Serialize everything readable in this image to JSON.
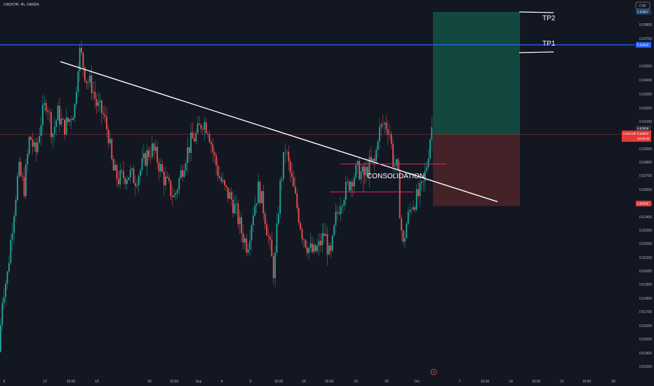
{
  "header": {
    "symbol_title": "CAD/CHF, 4h, OANDA",
    "currency_label": "CHF"
  },
  "chart_data": {
    "type": "candlestick",
    "ylim": [
      0.6125,
      0.6395
    ],
    "grid": false,
    "y_ticks": [
      "0.63800",
      "0.63700",
      "0.63500",
      "0.63400",
      "0.63300",
      "0.63200",
      "0.63100",
      "0.62900",
      "0.62800",
      "0.62700",
      "0.62600",
      "0.62500",
      "0.62400",
      "0.62300",
      "0.62200",
      "0.62100",
      "0.62000",
      "0.61900",
      "0.61800",
      "0.61700",
      "0.61600",
      "0.61500",
      "0.61400",
      "0.61300"
    ],
    "x_ticks": [
      "6",
      "12",
      "15:00",
      "19",
      "26",
      "15:00",
      "Sep",
      "4",
      "9",
      "15:00",
      "16",
      "15:00",
      "23",
      "26",
      "Oct",
      "7",
      "15:00",
      "14",
      "15:00",
      "21",
      "15:00",
      "28"
    ],
    "price_tags": {
      "tp2": "0.63907",
      "resistance": "0.63640",
      "current_1": "0.63008",
      "current_2": "0.63005",
      "symbol": "CADCHF",
      "symbol_price": "0.63002",
      "countdown": "03:50:09",
      "stop": "0.62490"
    },
    "levels": {
      "resistance": 0.6364,
      "entry": 0.63,
      "take_profit_2": 0.63907,
      "stop_loss": 0.6249,
      "consolidation_top": 0.6279,
      "consolidation_bottom": 0.6259
    },
    "annotations": {
      "tp2": "TP2",
      "tp1": "TP1",
      "consolidation": "CONSOLIDATION"
    },
    "trendline": {
      "start": [
        "Aug 14",
        0.6352
      ],
      "end": [
        "Oct 8",
        0.6252
      ]
    },
    "colors": {
      "background": "#131722",
      "up": "#26a69a",
      "down": "#ef5350",
      "resistance": "#2962ff",
      "trendline": "#ffffff",
      "consolidation": "#e91e63",
      "profit_zone": "#134e44",
      "loss_zone": "#4a2428"
    },
    "price_path": [
      [
        0,
        0.6145
      ],
      [
        5,
        0.6185
      ],
      [
        12,
        0.62
      ],
      [
        20,
        0.624
      ],
      [
        28,
        0.6275
      ],
      [
        36,
        0.6262
      ],
      [
        44,
        0.63
      ],
      [
        52,
        0.6285
      ],
      [
        60,
        0.631
      ],
      [
        68,
        0.6325
      ],
      [
        76,
        0.63
      ],
      [
        84,
        0.6315
      ],
      [
        92,
        0.6305
      ],
      [
        100,
        0.631
      ],
      [
        108,
        0.632
      ],
      [
        114,
        0.636
      ],
      [
        118,
        0.6355
      ],
      [
        124,
        0.634
      ],
      [
        132,
        0.6335
      ],
      [
        140,
        0.632
      ],
      [
        148,
        0.6315
      ],
      [
        156,
        0.63
      ],
      [
        162,
        0.6275
      ],
      [
        170,
        0.6268
      ],
      [
        178,
        0.627
      ],
      [
        186,
        0.6272
      ],
      [
        194,
        0.6268
      ],
      [
        202,
        0.6275
      ],
      [
        210,
        0.6285
      ],
      [
        218,
        0.629
      ],
      [
        226,
        0.6282
      ],
      [
        234,
        0.627
      ],
      [
        242,
        0.6262
      ],
      [
        250,
        0.6255
      ],
      [
        258,
        0.627
      ],
      [
        266,
        0.6285
      ],
      [
        274,
        0.6295
      ],
      [
        282,
        0.63
      ],
      [
        290,
        0.631
      ],
      [
        298,
        0.6305
      ],
      [
        306,
        0.6285
      ],
      [
        314,
        0.627
      ],
      [
        322,
        0.626
      ],
      [
        330,
        0.6255
      ],
      [
        338,
        0.6245
      ],
      [
        346,
        0.623
      ],
      [
        354,
        0.622
      ],
      [
        362,
        0.6245
      ],
      [
        370,
        0.6262
      ],
      [
        378,
        0.6245
      ],
      [
        386,
        0.622
      ],
      [
        392,
        0.62
      ],
      [
        400,
        0.626
      ],
      [
        408,
        0.629
      ],
      [
        416,
        0.627
      ],
      [
        424,
        0.625
      ],
      [
        432,
        0.623
      ],
      [
        440,
        0.622
      ],
      [
        448,
        0.6215
      ],
      [
        456,
        0.622
      ],
      [
        464,
        0.623
      ],
      [
        472,
        0.621
      ],
      [
        480,
        0.624
      ],
      [
        488,
        0.6255
      ],
      [
        496,
        0.6262
      ],
      [
        504,
        0.627
      ],
      [
        512,
        0.6275
      ],
      [
        520,
        0.627
      ],
      [
        528,
        0.6278
      ],
      [
        536,
        0.628
      ],
      [
        540,
        0.63
      ],
      [
        548,
        0.6308
      ],
      [
        556,
        0.6305
      ],
      [
        562,
        0.628
      ],
      [
        568,
        0.6275
      ],
      [
        572,
        0.624
      ],
      [
        576,
        0.622
      ],
      [
        580,
        0.6235
      ],
      [
        588,
        0.625
      ],
      [
        596,
        0.6255
      ],
      [
        604,
        0.6262
      ],
      [
        610,
        0.628
      ],
      [
        616,
        0.6305
      ]
    ]
  }
}
